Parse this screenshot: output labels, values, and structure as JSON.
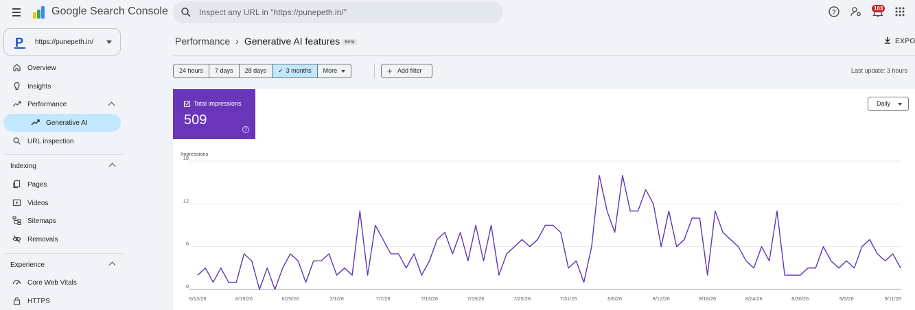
{
  "app": {
    "brand": "Google Search Console",
    "search_placeholder": "Inspect any URL in \"https://punepeth.in/\"",
    "notifications_count": "103"
  },
  "sidebar": {
    "property": "https://punepeth.in/",
    "items": [
      {
        "label": "Overview",
        "icon": "home-icon"
      },
      {
        "label": "Insights",
        "icon": "lightbulb-icon"
      },
      {
        "label": "Performance",
        "icon": "trending-up-icon"
      },
      {
        "label": "Generative AI",
        "icon": "trending-up-icon"
      },
      {
        "label": "URL inspection",
        "icon": "search-icon"
      }
    ],
    "indexing": {
      "title": "Indexing",
      "items": [
        {
          "label": "Pages",
          "icon": "pages-icon"
        },
        {
          "label": "Videos",
          "icon": "video-icon"
        },
        {
          "label": "Sitemaps",
          "icon": "sitemap-icon"
        },
        {
          "label": "Removals",
          "icon": "eye-off-icon"
        }
      ]
    },
    "experience": {
      "title": "Experience",
      "items": [
        {
          "label": "Core Web Vitals",
          "icon": "gauge-icon"
        },
        {
          "label": "HTTPS",
          "icon": "lock-icon"
        }
      ]
    }
  },
  "header": {
    "breadcrumb_parent": "Performance",
    "breadcrumb_current": "Generative AI features",
    "beta": "Beta",
    "export": "EXPO"
  },
  "filters": {
    "ranges": [
      "24 hours",
      "7 days",
      "28 days",
      "3 months"
    ],
    "selected_range": "3 months",
    "more": "More",
    "add_filter": "Add filter",
    "last_update": "Last update: 3 hours"
  },
  "metric": {
    "label": "Total impressions",
    "value": "509",
    "color": "#6936ba"
  },
  "granularity": "Daily",
  "chart_data": {
    "type": "line",
    "ylabel": "Impressions",
    "ylim": [
      0,
      18
    ],
    "yticks": [
      0,
      6,
      12,
      18
    ],
    "grid": true,
    "color": "#5e35b1",
    "xticklabels": [
      "6/13/26",
      "6/19/26",
      "6/25/26",
      "7/1/26",
      "7/7/26",
      "7/13/26",
      "7/19/26",
      "7/25/26",
      "7/31/26",
      "8/6/26",
      "8/12/26",
      "8/18/26",
      "8/24/26",
      "8/30/26",
      "9/5/26",
      "9/11/26"
    ],
    "start_date": "6/13/26",
    "values": [
      2,
      3,
      1,
      3,
      1,
      1,
      5,
      4,
      0,
      3,
      0,
      3,
      5,
      4,
      1,
      4,
      4,
      5,
      2,
      3,
      2,
      11,
      2,
      9,
      7,
      5,
      5,
      3,
      5,
      2,
      4,
      7,
      8,
      5,
      8,
      4,
      9,
      4,
      9,
      2,
      5,
      6,
      7,
      6,
      7,
      9,
      9,
      8,
      3,
      4,
      1,
      6,
      16,
      11,
      8,
      16,
      11,
      11,
      14,
      12,
      6,
      11,
      6,
      7,
      10,
      10,
      2,
      11,
      8,
      7,
      6,
      4,
      3,
      6,
      4,
      11,
      2,
      2,
      2,
      3,
      3,
      6,
      4,
      3,
      4,
      3,
      6,
      7,
      5,
      4,
      5,
      3
    ]
  }
}
